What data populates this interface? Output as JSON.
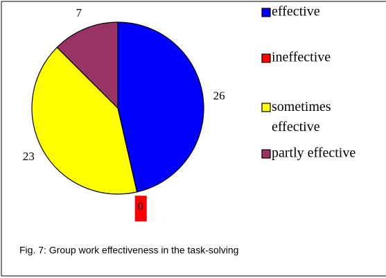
{
  "chart_data": {
    "type": "pie",
    "categories": [
      "effective",
      "ineffective",
      "sometimes effective",
      "partly effective"
    ],
    "values": [
      26,
      0,
      23,
      7
    ],
    "colors": [
      "#0000ff",
      "#ff0000",
      "#ffff00",
      "#993366"
    ],
    "caption": "Fig. 7: Group work effectiveness in the task-solving"
  }
}
